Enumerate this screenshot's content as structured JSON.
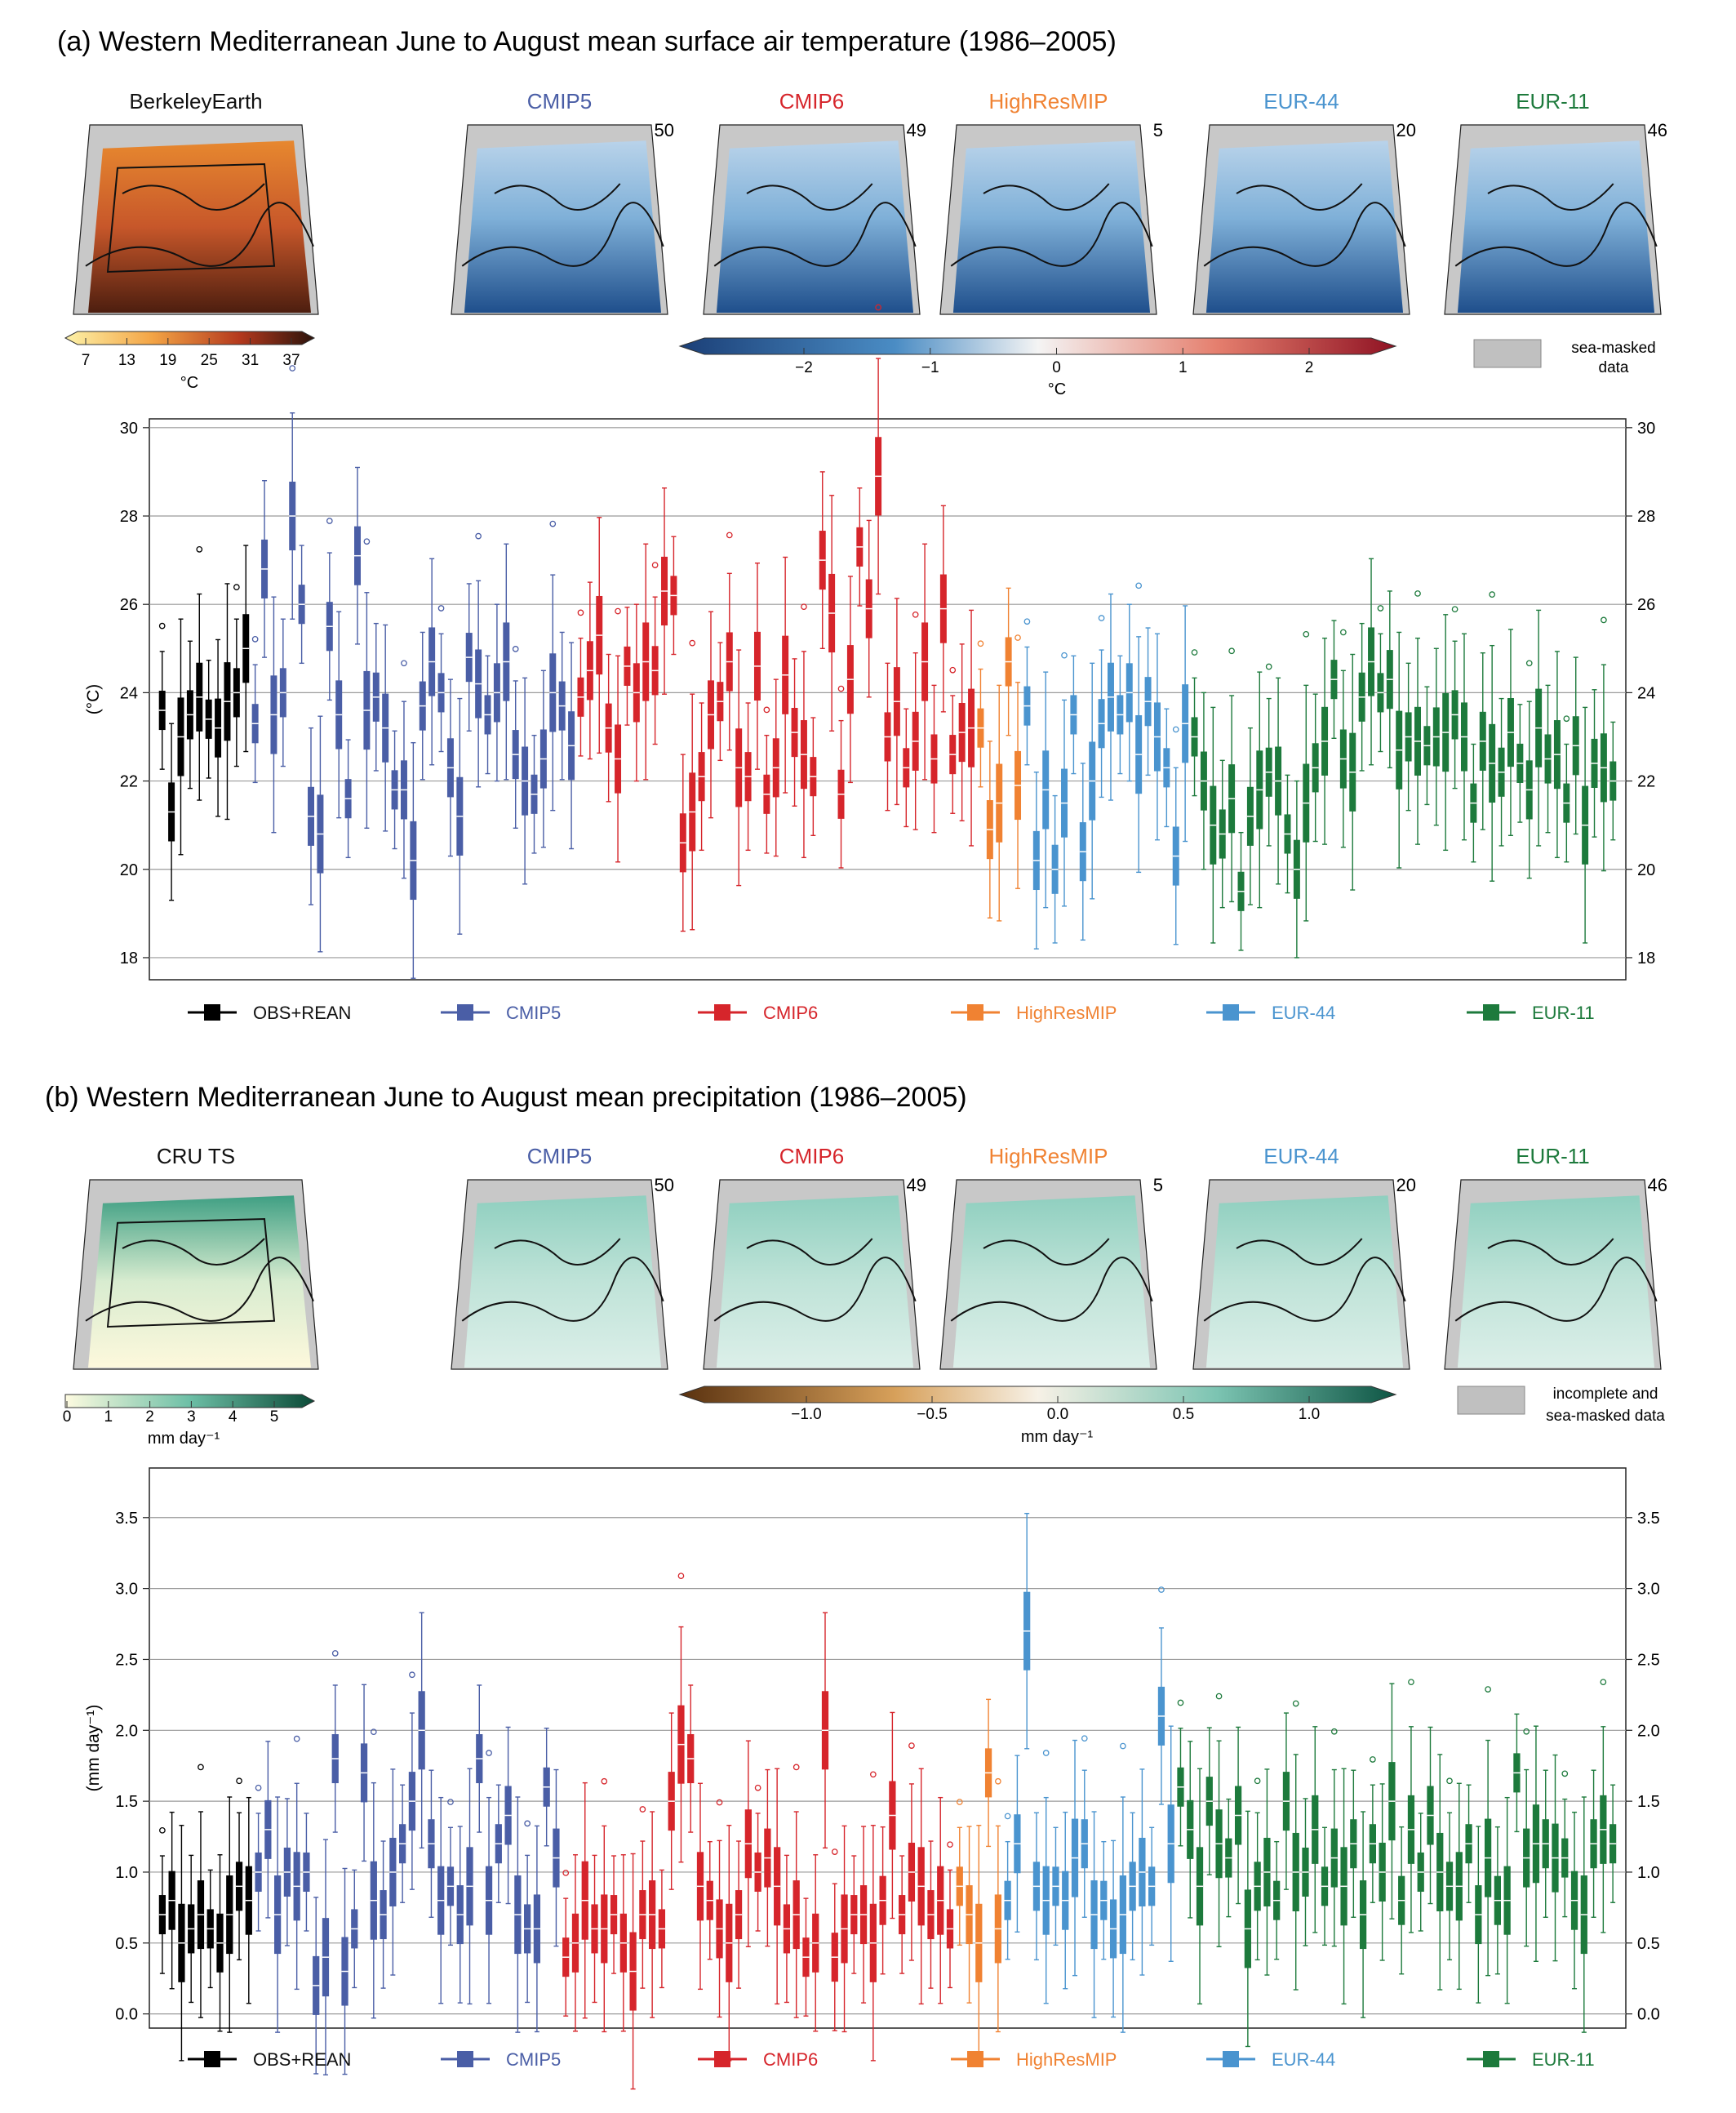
{
  "colors": {
    "obs": "#000000",
    "cmip5": "#4a5ea6",
    "cmip6": "#d6252b",
    "highres": "#f08232",
    "eur44": "#4a94cf",
    "eur11": "#1d7a3c",
    "masked": "#c0c0c0"
  },
  "panel_a": {
    "title": "(a) Western Mediterranean June to August mean surface air temperature (1986–2005)",
    "obs_map_title": "BerkeleyEarth",
    "maps": [
      {
        "key": "cmip5",
        "name": "CMIP5",
        "count": "50"
      },
      {
        "key": "cmip6",
        "name": "CMIP6",
        "count": "49"
      },
      {
        "key": "highres",
        "name": "HighResMIP",
        "count": "5"
      },
      {
        "key": "eur44",
        "name": "EUR-44",
        "count": "20"
      },
      {
        "key": "eur11",
        "name": "EUR-11",
        "count": "46"
      }
    ],
    "abs_colorbar": {
      "ticks": [
        "7",
        "13",
        "19",
        "25",
        "31",
        "37"
      ],
      "unit": "°C"
    },
    "bias_colorbar": {
      "ticks": [
        "−2",
        "−1",
        "0",
        "1",
        "2"
      ],
      "unit": "°C"
    },
    "mask_legend": {
      "line1": "sea-masked",
      "line2": "data"
    }
  },
  "panel_b": {
    "title": "(b) Western Mediterranean June to August mean precipitation (1986–2005)",
    "obs_map_title": "CRU TS",
    "maps": [
      {
        "key": "cmip5",
        "name": "CMIP5",
        "count": "50"
      },
      {
        "key": "cmip6",
        "name": "CMIP6",
        "count": "49"
      },
      {
        "key": "highres",
        "name": "HighResMIP",
        "count": "5"
      },
      {
        "key": "eur44",
        "name": "EUR-44",
        "count": "20"
      },
      {
        "key": "eur11",
        "name": "EUR-11",
        "count": "46"
      }
    ],
    "abs_colorbar": {
      "ticks": [
        "0",
        "1",
        "2",
        "3",
        "4",
        "5"
      ],
      "unit": "mm day⁻¹"
    },
    "bias_colorbar": {
      "ticks": [
        "−1.0",
        "−0.5",
        "0.0",
        "0.5",
        "1.0"
      ],
      "unit": "mm day⁻¹"
    },
    "mask_legend": {
      "line1": "incomplete and",
      "line2": "sea-masked data"
    }
  },
  "legend": [
    {
      "key": "obs",
      "label": "OBS+REAN"
    },
    {
      "key": "cmip5",
      "label": "CMIP5"
    },
    {
      "key": "cmip6",
      "label": "CMIP6"
    },
    {
      "key": "highres",
      "label": "HighResMIP"
    },
    {
      "key": "eur44",
      "label": "EUR-44"
    },
    {
      "key": "eur11",
      "label": "EUR-11"
    }
  ],
  "chart_data": [
    {
      "type": "box",
      "ylabel": "(°C)",
      "ylim": [
        17.5,
        30.2
      ],
      "yticks": [
        "18",
        "20",
        "22",
        "24",
        "26",
        "28",
        "30"
      ],
      "grid": true,
      "groups": [
        {
          "key": "obs",
          "medians": [
            23.6,
            21.3,
            23.0,
            23.5,
            23.9,
            23.4,
            23.2,
            23.8,
            24.0,
            25.0
          ]
        },
        {
          "key": "cmip5",
          "medians": [
            23.3,
            26.8,
            23.5,
            24.0,
            28.0,
            26.0,
            21.2,
            20.8,
            25.5,
            23.5,
            21.6,
            27.1,
            23.6,
            23.9,
            23.2,
            21.8,
            21.8,
            20.2,
            23.7,
            24.7,
            24.0,
            22.3,
            21.2,
            24.8,
            24.2,
            23.5,
            24.0,
            24.7,
            22.6,
            22.0,
            21.7,
            22.5,
            24.0,
            23.7,
            22.8
          ]
        },
        {
          "key": "cmip6",
          "medians": [
            23.9,
            24.5,
            25.3,
            23.2,
            22.5,
            24.6,
            24.0,
            24.7,
            24.5,
            26.3,
            26.2,
            20.6,
            21.3,
            22.1,
            23.5,
            23.8,
            24.7,
            22.3,
            22.1,
            24.6,
            21.7,
            22.3,
            24.4,
            23.1,
            22.6,
            22.1,
            27.0,
            25.8,
            21.7,
            24.3,
            27.3,
            25.9,
            28.9,
            23.0,
            23.8,
            22.3,
            22.9,
            24.7,
            22.5,
            25.9,
            22.6,
            23.1,
            23.2
          ]
        },
        {
          "key": "highres",
          "medians": [
            23.2,
            20.9,
            21.5,
            24.7,
            21.9
          ]
        },
        {
          "key": "eur44",
          "medians": [
            23.7,
            20.2,
            21.8,
            20.0,
            21.5,
            23.5,
            20.4,
            22.0,
            23.3,
            23.9,
            23.5,
            24.0,
            22.6,
            23.8,
            23.0,
            22.3,
            20.3,
            23.3
          ]
        },
        {
          "key": "eur11",
          "medians": [
            23.0,
            22.0,
            21.0,
            20.8,
            21.6,
            19.5,
            21.2,
            21.8,
            22.2,
            22.0,
            20.8,
            20.0,
            21.5,
            22.3,
            22.9,
            24.3,
            22.5,
            22.2,
            23.9,
            24.7,
            24.0,
            24.3,
            22.7,
            23.0,
            22.9,
            22.8,
            23.0,
            23.1,
            23.5,
            23.0,
            21.5,
            22.9,
            22.4,
            22.2,
            23.1,
            22.4,
            21.8,
            23.2,
            22.5,
            22.6,
            21.5,
            22.8,
            21.0,
            22.4,
            22.3,
            22.0
          ]
        }
      ]
    },
    {
      "type": "box",
      "ylabel": "(mm day⁻¹)",
      "ylim": [
        -0.1,
        3.85
      ],
      "yticks": [
        "0.0",
        "0.5",
        "1.0",
        "1.5",
        "2.0",
        "2.5",
        "3.0",
        "3.5"
      ],
      "grid": true,
      "groups": [
        {
          "key": "obs",
          "medians": [
            0.7,
            0.8,
            0.5,
            0.6,
            0.7,
            0.6,
            0.5,
            0.7,
            0.9,
            0.8
          ]
        },
        {
          "key": "cmip5",
          "medians": [
            1.0,
            1.3,
            0.7,
            1.0,
            0.9,
            1.0,
            0.2,
            0.4,
            1.8,
            0.3,
            0.6,
            1.7,
            0.8,
            0.7,
            1.0,
            1.2,
            1.5,
            2.0,
            1.2,
            0.8,
            0.9,
            0.7,
            0.9,
            1.8,
            0.8,
            1.2,
            1.4,
            0.7,
            0.6,
            0.6,
            1.6,
            1.1
          ]
        },
        {
          "key": "cmip6",
          "medians": [
            0.4,
            0.5,
            0.8,
            0.6,
            0.6,
            0.7,
            0.5,
            0.3,
            0.7,
            0.7,
            0.6,
            1.5,
            1.9,
            1.8,
            0.9,
            0.8,
            0.6,
            0.5,
            0.7,
            1.2,
            1.0,
            1.1,
            0.9,
            0.6,
            0.7,
            0.4,
            0.5,
            2.0,
            0.4,
            0.6,
            0.7,
            0.7,
            0.5,
            0.8,
            1.4,
            0.7,
            1.0,
            0.9,
            0.7,
            0.8,
            0.6
          ]
        },
        {
          "key": "highres",
          "medians": [
            0.9,
            0.7,
            0.5,
            1.7,
            0.6
          ]
        },
        {
          "key": "eur44",
          "medians": [
            0.8,
            1.2,
            2.7,
            0.9,
            0.8,
            0.9,
            0.8,
            1.1,
            1.2,
            0.7,
            0.8,
            0.6,
            0.7,
            0.9,
            1.0,
            0.9,
            2.1,
            1.2
          ]
        },
        {
          "key": "eur11",
          "medians": [
            1.6,
            1.3,
            0.9,
            1.5,
            1.2,
            1.1,
            1.4,
            0.6,
            0.9,
            1.0,
            0.8,
            1.5,
            1.0,
            1.0,
            1.3,
            0.9,
            1.1,
            0.9,
            1.2,
            0.7,
            1.2,
            1.0,
            1.5,
            0.8,
            1.3,
            1.0,
            1.4,
            1.0,
            0.9,
            0.9,
            1.2,
            0.7,
            1.1,
            0.8,
            0.8,
            1.7,
            1.1,
            1.2,
            1.2,
            1.1,
            1.1,
            0.8,
            0.7,
            1.2,
            1.3,
            1.2
          ]
        }
      ]
    }
  ]
}
